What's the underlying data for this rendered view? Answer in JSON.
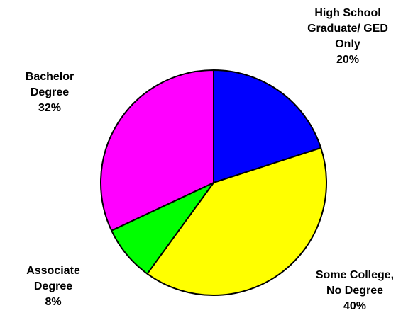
{
  "chart_data": {
    "type": "pie",
    "title": "",
    "start_angle_deg": 0,
    "direction": "clockwise",
    "slices": [
      {
        "label_lines": [
          "High School",
          "Graduate/ GED",
          "Only"
        ],
        "percent_label": "20%",
        "value": 20,
        "color": "#0000FF"
      },
      {
        "label_lines": [
          "Some College,",
          "No Degree"
        ],
        "percent_label": "40%",
        "value": 40,
        "color": "#FFFF00"
      },
      {
        "label_lines": [
          "Associate",
          "Degree"
        ],
        "percent_label": "8%",
        "value": 8,
        "color": "#00FF00"
      },
      {
        "label_lines": [
          "Bachelor",
          "Degree"
        ],
        "percent_label": "32%",
        "value": 32,
        "color": "#FF00FF"
      }
    ]
  }
}
